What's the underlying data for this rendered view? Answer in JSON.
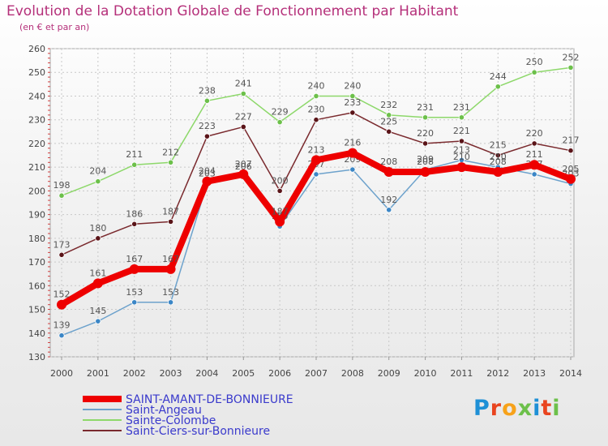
{
  "title": "Evolution de la Dotation Globale de Fonctionnement par Habitant",
  "subtitle": "(en € et par an)",
  "logo": {
    "text": "Proxiti",
    "letters": [
      "P",
      "r",
      "o",
      "x",
      "i",
      "t",
      "i"
    ]
  },
  "chart_data": {
    "type": "line",
    "title": "Evolution de la Dotation Globale de Fonctionnement par Habitant",
    "subtitle": "(en € et par an)",
    "xlabel": "",
    "ylabel": "",
    "ylim": [
      130,
      260
    ],
    "yticks": [
      "130",
      "140",
      "150",
      "160",
      "170",
      "180",
      "190",
      "200",
      "210",
      "220",
      "230",
      "240",
      "250",
      "260"
    ],
    "categories": [
      "2000",
      "2001",
      "2002",
      "2003",
      "2004",
      "2005",
      "2006",
      "2007",
      "2008",
      "2009",
      "2010",
      "2011",
      "2012",
      "2013",
      "2014"
    ],
    "legend_position": "bottom-left",
    "series": [
      {
        "name": "Sainte-Colombe",
        "color": "#8dd86a",
        "marker": "#6cc04a",
        "values": [
          198,
          204,
          211,
          212,
          238,
          241,
          229,
          240,
          240,
          232,
          231,
          231,
          244,
          250,
          252
        ],
        "labels": [
          "198",
          "204",
          "211",
          "212",
          "238",
          "241",
          "229",
          "240",
          "240",
          "232",
          "231",
          "231",
          "244",
          "250",
          "252"
        ]
      },
      {
        "name": "Saint-Ciers-sur-Bonnieure",
        "color": "#7a2a2e",
        "marker": "#5a1418",
        "values": [
          173,
          180,
          186,
          187,
          223,
          227,
          200,
          230,
          233,
          225,
          220,
          221,
          215,
          220,
          217
        ],
        "labels": [
          "173",
          "180",
          "186",
          "187",
          "223",
          "227",
          "200",
          "230",
          "233",
          "225",
          "220",
          "221",
          "215",
          "220",
          "217"
        ]
      },
      {
        "name": "Saint-Angeau",
        "color": "#6da2cc",
        "marker": "#3b86c6",
        "values": [
          139,
          145,
          153,
          153,
          203,
          206,
          185,
          207,
          209,
          192,
          209,
          213,
          210,
          207,
          203
        ],
        "labels": [
          "139",
          "145",
          "153",
          "153",
          "203",
          "206",
          "185",
          "207",
          "209",
          "192",
          "209",
          "213",
          "210",
          "207",
          "203"
        ]
      },
      {
        "name": "SAINT-AMANT-DE-BONNIEURE",
        "color": "#ee0000",
        "marker": "#ee0000",
        "values": [
          152,
          161,
          167,
          167,
          204,
          207,
          187,
          213,
          216,
          208,
          208,
          210,
          208,
          211,
          205
        ],
        "labels": [
          "152",
          "161",
          "167",
          "167",
          "204",
          "207",
          "187",
          "213",
          "216",
          "208",
          "208",
          "210",
          "208",
          "211",
          "205"
        ]
      }
    ]
  }
}
